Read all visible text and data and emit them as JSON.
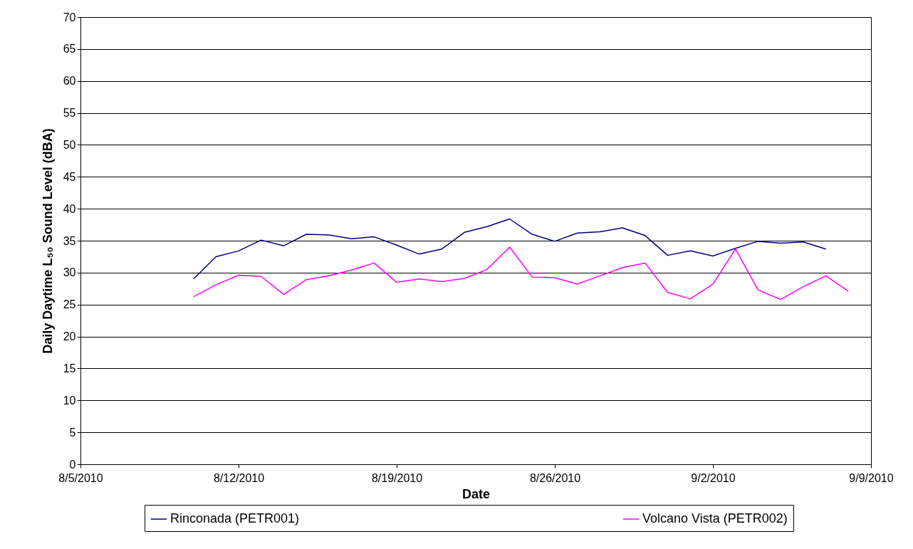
{
  "chart_data": {
    "type": "line",
    "xlabel": "Date",
    "ylabel": "Daily Daytime L₅₀ Sound Level (dBA)",
    "xlim": [
      "2010-08-05",
      "2010-09-09"
    ],
    "xticks": [
      {
        "value": "2010-08-05",
        "label": "8/5/2010"
      },
      {
        "value": "2010-08-12",
        "label": "8/12/2010"
      },
      {
        "value": "2010-08-19",
        "label": "8/19/2010"
      },
      {
        "value": "2010-08-26",
        "label": "8/26/2010"
      },
      {
        "value": "2010-09-02",
        "label": "9/2/2010"
      },
      {
        "value": "2010-09-09",
        "label": "9/9/2010"
      }
    ],
    "ylim": [
      0,
      70
    ],
    "yticks": [
      0,
      5,
      10,
      15,
      20,
      25,
      30,
      35,
      40,
      45,
      50,
      55,
      60,
      65,
      70
    ],
    "grid": "y",
    "legend": "bottom",
    "marker": "none",
    "line_style": "solid",
    "series": [
      {
        "name": "Rinconada (PETR001)",
        "color": "#000080",
        "x": [
          "2010-08-10",
          "2010-08-11",
          "2010-08-12",
          "2010-08-13",
          "2010-08-14",
          "2010-08-15",
          "2010-08-16",
          "2010-08-17",
          "2010-08-18",
          "2010-08-19",
          "2010-08-20",
          "2010-08-21",
          "2010-08-22",
          "2010-08-23",
          "2010-08-24",
          "2010-08-25",
          "2010-08-26",
          "2010-08-27",
          "2010-08-28",
          "2010-08-29",
          "2010-08-30",
          "2010-08-31",
          "2010-09-01",
          "2010-09-02",
          "2010-09-03",
          "2010-09-04",
          "2010-09-05",
          "2010-09-06",
          "2010-09-07"
        ],
        "values": [
          29,
          32.5,
          33.4,
          35.1,
          34.2,
          36,
          35.9,
          35.3,
          35.6,
          34.3,
          32.9,
          33.7,
          36.3,
          37.2,
          38.4,
          36,
          34.9,
          36.2,
          36.4,
          37,
          35.8,
          32.7,
          33.4,
          32.6,
          33.8,
          34.9,
          34.6,
          34.8,
          33.7
        ]
      },
      {
        "name": "Volcano Vista (PETR002)",
        "color": "#ff00ff",
        "x": [
          "2010-08-10",
          "2010-08-11",
          "2010-08-12",
          "2010-08-13",
          "2010-08-14",
          "2010-08-15",
          "2010-08-16",
          "2010-08-17",
          "2010-08-18",
          "2010-08-19",
          "2010-08-20",
          "2010-08-21",
          "2010-08-22",
          "2010-08-23",
          "2010-08-24",
          "2010-08-25",
          "2010-08-26",
          "2010-08-27",
          "2010-08-28",
          "2010-08-29",
          "2010-08-30",
          "2010-08-31",
          "2010-09-01",
          "2010-09-02",
          "2010-09-03",
          "2010-09-04",
          "2010-09-05",
          "2010-09-06",
          "2010-09-07",
          "2010-09-08"
        ],
        "values": [
          26.2,
          28.1,
          29.6,
          29.4,
          26.6,
          28.9,
          29.5,
          30.4,
          31.5,
          28.5,
          29,
          28.6,
          29.1,
          30.5,
          34,
          29.3,
          29.2,
          28.2,
          29.5,
          30.8,
          31.5,
          26.9,
          25.9,
          28.2,
          33.7,
          27.3,
          25.8,
          27.8,
          29.5,
          27.1
        ]
      }
    ]
  }
}
